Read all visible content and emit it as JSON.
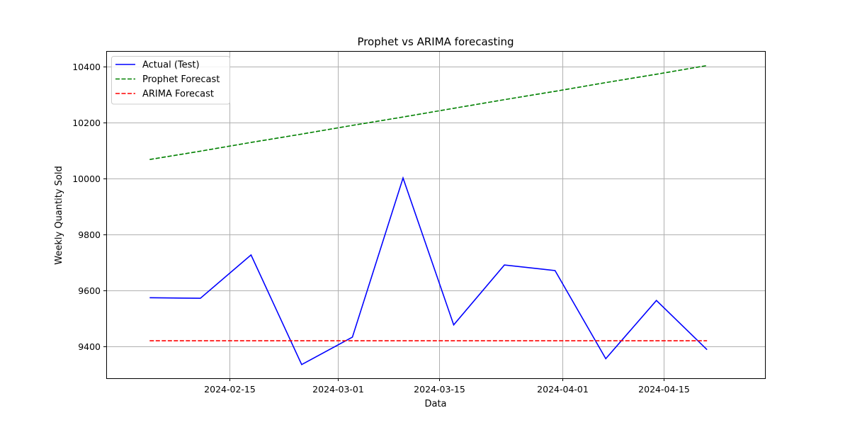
{
  "chart_data": {
    "type": "line",
    "title": "Prophet vs ARIMA forecasting",
    "xlabel": "Data",
    "ylabel": "Weekly Quantity Sold",
    "x_type": "date",
    "xlim": [
      "2024-01-29",
      "2024-04-29"
    ],
    "ylim": [
      9285,
      10455
    ],
    "grid": true,
    "legend_position": "top-left",
    "x_ticks": [
      "2024-02-15",
      "2024-03-01",
      "2024-03-15",
      "2024-04-01",
      "2024-04-15"
    ],
    "y_ticks": [
      9400,
      9600,
      9800,
      10000,
      10200,
      10400
    ],
    "series": [
      {
        "name": "Actual (Test)",
        "color": "#0000ff",
        "style": "solid",
        "x": [
          "2024-02-04",
          "2024-02-11",
          "2024-02-18",
          "2024-02-25",
          "2024-03-03",
          "2024-03-10",
          "2024-03-17",
          "2024-03-24",
          "2024-03-31",
          "2024-04-07",
          "2024-04-14",
          "2024-04-21"
        ],
        "values": [
          9573,
          9571,
          9726,
          9334,
          9432,
          10001,
          9476,
          9690,
          9670,
          9355,
          9563,
          9387
        ]
      },
      {
        "name": "Prophet Forecast",
        "color": "#008000",
        "style": "dashed",
        "x": [
          "2024-02-04",
          "2024-02-11",
          "2024-02-18",
          "2024-02-25",
          "2024-03-03",
          "2024-03-10",
          "2024-03-17",
          "2024-03-24",
          "2024-03-31",
          "2024-04-07",
          "2024-04-14",
          "2024-04-21"
        ],
        "values": [
          10067,
          10097,
          10128,
          10158,
          10189,
          10219,
          10250,
          10281,
          10311,
          10342,
          10372,
          10403
        ]
      },
      {
        "name": "ARIMA Forecast",
        "color": "#ff0000",
        "style": "dashed",
        "x": [
          "2024-02-04",
          "2024-02-11",
          "2024-02-18",
          "2024-02-25",
          "2024-03-03",
          "2024-03-10",
          "2024-03-17",
          "2024-03-24",
          "2024-03-31",
          "2024-04-07",
          "2024-04-14",
          "2024-04-21"
        ],
        "values": [
          9419,
          9419,
          9419,
          9419,
          9419,
          9419,
          9419,
          9419,
          9419,
          9419,
          9419,
          9419
        ]
      }
    ]
  }
}
